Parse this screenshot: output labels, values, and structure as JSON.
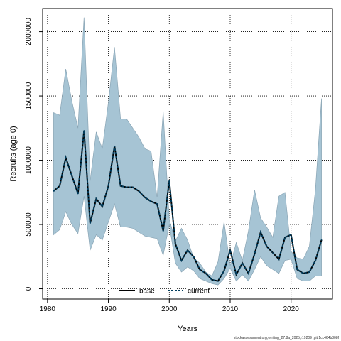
{
  "chart_data": {
    "type": "line",
    "xlabel": "Years",
    "ylabel": "Recruits (age 0)",
    "xlim": [
      1979.2,
      2026.8
    ],
    "ylim": [
      -80000,
      2180000
    ],
    "xticks": [
      1980,
      1990,
      2000,
      2010,
      2020
    ],
    "xtick_labels": [
      "1980",
      "1990",
      "2000",
      "2010",
      "2020"
    ],
    "yticks": [
      0,
      500000,
      1000000,
      1500000,
      2000000
    ],
    "ytick_labels": [
      "0",
      "500000",
      "1000000",
      "1500000",
      "2000000"
    ],
    "grid": true,
    "legend_position": "bottom-center",
    "colors": {
      "band": "#a6c4d4",
      "band_edge": "#8aa5b5",
      "line": "#000000",
      "current": "#003c5c"
    },
    "legend": [
      {
        "label": "base",
        "style": "solid"
      },
      {
        "label": "current",
        "style": "dashed"
      }
    ],
    "x": [
      1981,
      1982,
      1983,
      1984,
      1985,
      1986,
      1987,
      1988,
      1989,
      1990,
      1991,
      1992,
      1993,
      1994,
      1995,
      1996,
      1997,
      1998,
      1999,
      2000,
      2001,
      2002,
      2003,
      2004,
      2005,
      2006,
      2007,
      2008,
      2009,
      2010,
      2011,
      2012,
      2013,
      2014,
      2015,
      2016,
      2017,
      2018,
      2019,
      2020,
      2021,
      2022,
      2023,
      2024,
      2025
    ],
    "series": [
      {
        "name": "current",
        "values": [
          760000,
          800000,
          1020000,
          880000,
          740000,
          1230000,
          510000,
          700000,
          640000,
          800000,
          1110000,
          800000,
          790000,
          790000,
          760000,
          710000,
          680000,
          660000,
          450000,
          840000,
          350000,
          220000,
          300000,
          250000,
          150000,
          120000,
          70000,
          60000,
          140000,
          300000,
          110000,
          200000,
          120000,
          270000,
          440000,
          330000,
          280000,
          230000,
          400000,
          420000,
          150000,
          120000,
          130000,
          220000,
          380000
        ],
        "lower": [
          420000,
          460000,
          600000,
          500000,
          430000,
          720000,
          300000,
          420000,
          380000,
          520000,
          660000,
          480000,
          480000,
          470000,
          440000,
          410000,
          400000,
          390000,
          260000,
          500000,
          200000,
          130000,
          170000,
          140000,
          80000,
          60000,
          40000,
          30000,
          80000,
          160000,
          60000,
          110000,
          60000,
          150000,
          250000,
          180000,
          150000,
          120000,
          220000,
          230000,
          80000,
          60000,
          60000,
          100000,
          100000
        ],
        "upper": [
          1370000,
          1350000,
          1710000,
          1460000,
          1250000,
          2110000,
          840000,
          1220000,
          1090000,
          1450000,
          1880000,
          1320000,
          1320000,
          1250000,
          1180000,
          1090000,
          1070000,
          710000,
          1380000,
          540000,
          370000,
          470000,
          380000,
          240000,
          200000,
          130000,
          100000,
          210000,
          520000,
          180000,
          360000,
          220000,
          450000,
          770000,
          550000,
          480000,
          400000,
          720000,
          750000,
          290000,
          240000,
          230000,
          330000,
          770000,
          1480000
        ]
      }
    ]
  },
  "footer": "stockassessment.org,whiting_27.8a_2025,r19209 ,git:1cc464b808f"
}
